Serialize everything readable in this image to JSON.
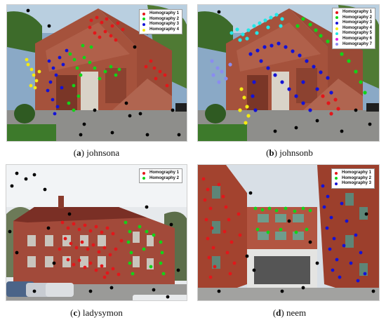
{
  "panels": [
    {
      "id": "a",
      "caption_letter": "a",
      "caption_name": "johnsona",
      "legend": [
        {
          "label": "Homography 1",
          "color": "#e3161a"
        },
        {
          "label": "Homography 2",
          "color": "#12d418"
        },
        {
          "label": "Homography 3",
          "color": "#1412d6"
        },
        {
          "label": "Homography 4",
          "color": "#f4ea12"
        }
      ]
    },
    {
      "id": "b",
      "caption_letter": "b",
      "caption_name": "johnsonb",
      "legend": [
        {
          "label": "Homography 1",
          "color": "#e3161a"
        },
        {
          "label": "Homography 2",
          "color": "#12d418"
        },
        {
          "label": "Homography 3",
          "color": "#1412d6"
        },
        {
          "label": "Homography 4",
          "color": "#f4ea12"
        },
        {
          "label": "Homography 5",
          "color": "#22e6e6"
        },
        {
          "label": "Homography 6",
          "color": "#e61ee6"
        },
        {
          "label": "Homography 7",
          "color": "#8a8cf0"
        }
      ]
    },
    {
      "id": "c",
      "caption_letter": "c",
      "caption_name": "ladysymon",
      "legend": [
        {
          "label": "Homography 1",
          "color": "#e3161a"
        },
        {
          "label": "Homography 2",
          "color": "#12d418"
        }
      ]
    },
    {
      "id": "d",
      "caption_letter": "d",
      "caption_name": "neem",
      "legend": [
        {
          "label": "Homography 1",
          "color": "#e3161a"
        },
        {
          "label": "Homography 2",
          "color": "#12d418"
        },
        {
          "label": "Homography 3",
          "color": "#1412d6"
        }
      ]
    }
  ],
  "outlier_color": "#000000"
}
